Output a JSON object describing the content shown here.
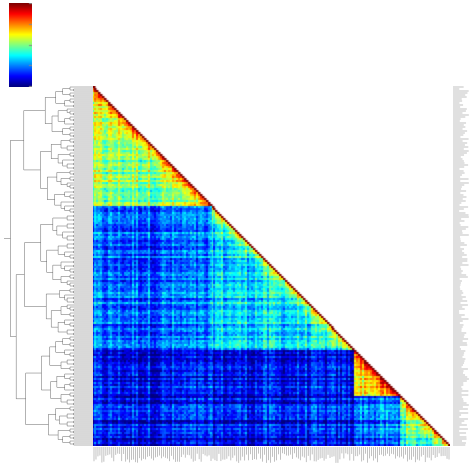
{
  "chart_data": {
    "type": "heatmap",
    "title": "",
    "xlabel": "",
    "ylabel": "",
    "layout": "lower-triangle",
    "row_dendrogram": "left",
    "row_labels_side": "right",
    "column_labels_side": "bottom",
    "colorbar": {
      "placement": "top-left",
      "colormap": "jet",
      "colors": [
        "#00007f",
        "#0000ff",
        "#007fff",
        "#00ffff",
        "#7fff7f",
        "#ffff00",
        "#ff7f00",
        "#ff0000",
        "#7f0000"
      ],
      "tick_labels": [
        "",
        "",
        "",
        "",
        ""
      ]
    },
    "n": 180,
    "values_scale": [
      0,
      1
    ],
    "diagonal_value": 1.0,
    "blocks": [
      {
        "start": 0,
        "end": 60,
        "mean": 0.52
      },
      {
        "start": 60,
        "end": 132,
        "mean": 0.34
      },
      {
        "start": 132,
        "end": 155,
        "mean": 0.62
      },
      {
        "start": 155,
        "end": 180,
        "mean": 0.42
      }
    ],
    "background_mean": 0.22,
    "low_band": {
      "rows_from": 132,
      "cols_to": 132,
      "mean": 0.12
    },
    "row_labels": [],
    "column_labels": []
  }
}
